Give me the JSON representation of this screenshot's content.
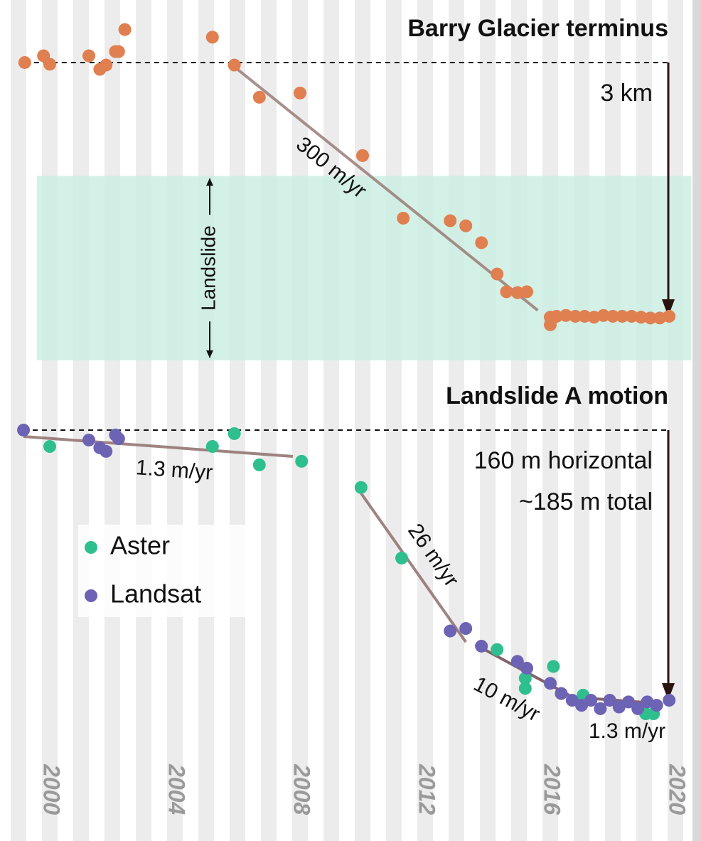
{
  "chart_data": [
    {
      "type": "scatter",
      "title": "Barry Glacier terminus",
      "xlim": [
        1999.0,
        2020.5
      ],
      "ylim": [
        -0.5,
        3.53
      ],
      "y_inverted": true,
      "reference_line": 0,
      "scale_bar": {
        "labels": [
          "3 km"
        ],
        "value": 3
      },
      "band": {
        "label": "Landslide",
        "range": [
          1.34,
          3.52
        ],
        "color": "#cdeee3"
      },
      "series": [
        {
          "name": null,
          "color": "#e07f50",
          "x": [
            1999.2,
            1999.8,
            2000.0,
            2001.25,
            2001.6,
            2001.8,
            2002.1,
            2002.2,
            2002.4,
            2005.2,
            2005.9,
            2006.7,
            2008.0,
            2010.0,
            2011.3,
            2012.8,
            2013.3,
            2013.8,
            2014.3,
            2014.6,
            2014.95,
            2015.25,
            2016.0,
            2016.0,
            2016.2,
            2016.5,
            2016.8,
            2017.1,
            2017.4,
            2017.7,
            2018.0,
            2018.3,
            2018.6,
            2018.9,
            2019.2,
            2019.5,
            2019.8
          ],
          "values": [
            0,
            -0.08,
            0.02,
            -0.08,
            0.08,
            0.03,
            -0.13,
            -0.13,
            -0.39,
            -0.3,
            0.03,
            0.41,
            0.36,
            1.1,
            1.84,
            1.87,
            1.93,
            2.13,
            2.5,
            2.71,
            2.72,
            2.71,
            3.01,
            3.1,
            3.0,
            2.99,
            3.0,
            3.0,
            3.01,
            2.99,
            3.0,
            3.0,
            3.0,
            3.01,
            3.02,
            3.02,
            3.0
          ]
        }
      ],
      "trends": [
        {
          "label": "300 m/yr",
          "x": [
            2005.73,
            2015.6
          ],
          "values": [
            0,
            2.93
          ],
          "color": "#9a7d77"
        }
      ]
    },
    {
      "type": "scatter",
      "title": "Landslide A motion",
      "xlim": [
        1999.0,
        2020.5
      ],
      "ylim": [
        -5,
        170
      ],
      "y_inverted": true,
      "reference_line": 0,
      "xticks": [
        2000,
        2004,
        2008,
        2012,
        2016,
        2020
      ],
      "scale_bar": {
        "labels": [
          "160 m horizontal",
          "~185 m total"
        ],
        "value": 160
      },
      "legend": "left",
      "series": [
        {
          "name": "Aster",
          "color": "#2fbf8f",
          "x": [
            2000.0,
            2005.2,
            2005.9,
            2006.7,
            2008.05,
            2009.95,
            2011.25,
            2014.3,
            2015.2,
            2015.2,
            2016.1,
            2017.05,
            2019.05,
            2019.3
          ],
          "values": [
            9.7,
            9.7,
            2.1,
            20.6,
            18.5,
            34,
            75.8,
            130,
            147,
            153,
            140,
            157,
            168,
            168
          ]
        },
        {
          "name": "Landsat",
          "color": "#6c63b5",
          "x": [
            1999.16,
            2001.25,
            2001.6,
            2001.8,
            2002.1,
            2002.2,
            2012.8,
            2013.3,
            2013.8,
            2014.95,
            2015.25,
            2016.0,
            2016.35,
            2016.7,
            2017.0,
            2017.3,
            2017.6,
            2017.9,
            2018.2,
            2018.5,
            2018.8,
            2019.1,
            2019.4,
            2019.8
          ],
          "values": [
            0,
            5.9,
            10.5,
            12.6,
            2.9,
            5.1,
            119,
            117.5,
            128,
            137,
            141,
            150,
            156,
            160,
            163,
            160,
            165,
            160,
            164,
            161,
            165,
            161,
            163,
            160
          ]
        }
      ],
      "trends": [
        {
          "label": "1.3 m/yr",
          "x": [
            1999.16,
            2007.77
          ],
          "values": [
            3.8,
            15.6
          ],
          "color": "#8f6f6c"
        },
        {
          "label": "26 m/yr",
          "x": [
            2009.89,
            2013.3
          ],
          "values": [
            35.8,
            125.5
          ],
          "color": "#8f6f6c"
        },
        {
          "label": "10 m/yr",
          "x": [
            2013.6,
            2016.6
          ],
          "values": [
            127,
            157
          ],
          "color": "#6e4a52"
        },
        {
          "label": "1.3 m/yr",
          "x": [
            2016.6,
            2019.55
          ],
          "values": [
            158,
            162
          ],
          "color": "#6e4a52"
        }
      ]
    }
  ]
}
